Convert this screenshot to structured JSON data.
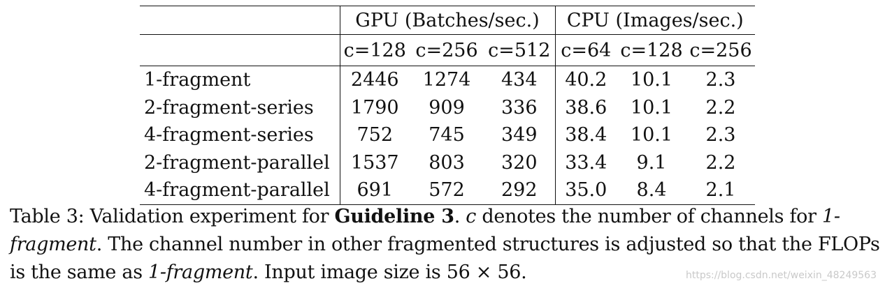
{
  "table": {
    "group_headers": {
      "gpu": "GPU (Batches/sec.)",
      "cpu": "CPU (Images/sec.)"
    },
    "sub_headers": [
      "c=128",
      "c=256",
      "c=512",
      "c=64",
      "c=128",
      "c=256"
    ],
    "rows": [
      {
        "label": "1-fragment",
        "values": [
          "2446",
          "1274",
          "434",
          "40.2",
          "10.1",
          "2.3"
        ]
      },
      {
        "label": "2-fragment-series",
        "values": [
          "1790",
          "909",
          "336",
          "38.6",
          "10.1",
          "2.2"
        ]
      },
      {
        "label": "4-fragment-series",
        "values": [
          "752",
          "745",
          "349",
          "38.4",
          "10.1",
          "2.3"
        ]
      },
      {
        "label": "2-fragment-parallel",
        "values": [
          "1537",
          "803",
          "320",
          "33.4",
          "9.1",
          "2.2"
        ]
      },
      {
        "label": "4-fragment-parallel",
        "values": [
          "691",
          "572",
          "292",
          "35.0",
          "8.4",
          "2.1"
        ]
      }
    ]
  },
  "caption": {
    "part1": "Table 3: Validation experiment for ",
    "bold1": "Guideline 3",
    "part2": ". ",
    "ital1": "c",
    "part3": " denotes the number of channels for ",
    "ital2": "1-fragment",
    "part4": ". The channel number in other fragmented structures is adjusted so that the FLOPs is the same as ",
    "ital3": "1-fragment",
    "part5": ". Input image size is 56 × 56."
  },
  "watermark": "https://blog.csdn.net/weixin_48249563"
}
